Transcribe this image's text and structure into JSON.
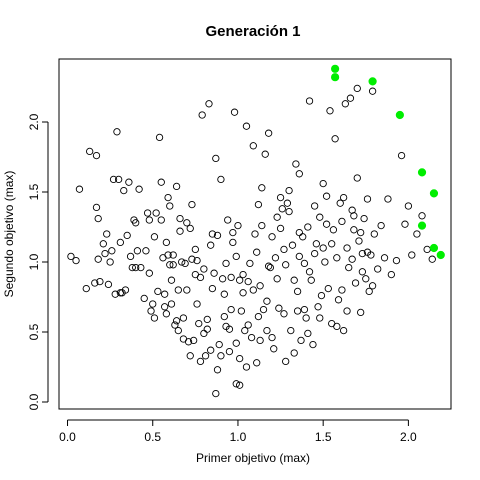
{
  "chart_data": {
    "type": "scatter",
    "title": "Generación 1",
    "xlabel": "Primer objetivo (max)",
    "ylabel": "Segundo objetivo (max)",
    "xlim": [
      -0.05,
      2.25
    ],
    "ylim": [
      -0.05,
      2.45
    ],
    "xticks": [
      0.0,
      0.5,
      1.0,
      1.5,
      2.0
    ],
    "xtick_labels": [
      "0.0",
      "0.5",
      "1.0",
      "1.5",
      "2.0"
    ],
    "yticks": [
      0.0,
      0.5,
      1.0,
      1.5,
      2.0
    ],
    "ytick_labels": [
      "0.0",
      "0.5",
      "1.0",
      "1.5",
      "2.0"
    ],
    "grid": false,
    "colors": {
      "population": "#000000",
      "pareto": "#00ee00"
    },
    "series": [
      {
        "marker": "open-circle",
        "points": [
          [
            0.02,
            1.04
          ],
          [
            0.05,
            1.01
          ],
          [
            0.07,
            1.52
          ],
          [
            0.11,
            0.81
          ],
          [
            0.13,
            1.79
          ],
          [
            0.17,
            1.76
          ],
          [
            0.17,
            1.39
          ],
          [
            0.18,
            1.31
          ],
          [
            0.16,
            0.85
          ],
          [
            0.19,
            0.86
          ],
          [
            0.21,
            1.13
          ],
          [
            0.22,
            1.06
          ],
          [
            0.24,
            0.84
          ],
          [
            0.25,
            1.0
          ],
          [
            0.27,
            1.59
          ],
          [
            0.28,
            0.77
          ],
          [
            0.29,
            1.93
          ],
          [
            0.3,
            1.59
          ],
          [
            0.31,
            0.78
          ],
          [
            0.32,
            0.78
          ],
          [
            0.33,
            1.51
          ],
          [
            0.34,
            0.8
          ],
          [
            0.36,
            1.57
          ],
          [
            0.37,
            1.04
          ],
          [
            0.38,
            0.96
          ],
          [
            0.39,
            1.3
          ],
          [
            0.4,
            1.28
          ],
          [
            0.41,
            1.08
          ],
          [
            0.43,
            0.96
          ],
          [
            0.45,
            0.74
          ],
          [
            0.47,
            1.35
          ],
          [
            0.48,
            1.3
          ],
          [
            0.49,
            0.65
          ],
          [
            0.5,
            0.7
          ],
          [
            0.51,
            0.6
          ],
          [
            0.51,
            1.18
          ],
          [
            0.53,
            0.79
          ],
          [
            0.54,
            1.89
          ],
          [
            0.55,
            1.57
          ],
          [
            0.56,
            1.03
          ],
          [
            0.57,
            0.77
          ],
          [
            0.58,
            0.63
          ],
          [
            0.59,
            1.46
          ],
          [
            0.6,
            1.4
          ],
          [
            0.6,
            0.98
          ],
          [
            0.61,
            0.87
          ],
          [
            0.62,
            1.05
          ],
          [
            0.63,
            0.55
          ],
          [
            0.64,
            1.54
          ],
          [
            0.65,
            0.8
          ],
          [
            0.65,
            0.51
          ],
          [
            0.66,
            1.31
          ],
          [
            0.67,
            1.0
          ],
          [
            0.68,
            0.45
          ],
          [
            0.69,
            0.99
          ],
          [
            0.7,
            1.28
          ],
          [
            0.71,
            0.43
          ],
          [
            0.72,
            1.24
          ],
          [
            0.73,
            1.02
          ],
          [
            0.74,
            0.44
          ],
          [
            0.75,
            0.91
          ],
          [
            0.76,
            0.7
          ],
          [
            0.77,
            0.56
          ],
          [
            0.78,
            0.89
          ],
          [
            0.79,
            2.05
          ],
          [
            0.8,
            0.95
          ],
          [
            0.81,
            0.33
          ],
          [
            0.82,
            0.59
          ],
          [
            0.83,
            2.13
          ],
          [
            0.84,
            1.12
          ],
          [
            0.85,
            0.81
          ],
          [
            0.86,
            0.92
          ],
          [
            0.87,
            1.74
          ],
          [
            0.88,
            1.19
          ],
          [
            0.89,
            0.41
          ],
          [
            0.9,
            0.33
          ],
          [
            0.91,
            0.88
          ],
          [
            0.92,
            0.77
          ],
          [
            0.93,
            0.54
          ],
          [
            0.94,
            1.3
          ],
          [
            0.95,
            0.52
          ],
          [
            0.96,
            0.89
          ],
          [
            0.97,
            1.21
          ],
          [
            0.98,
            2.07
          ],
          [
            0.99,
            0.42
          ],
          [
            1.0,
            1.26
          ],
          [
            1.01,
            0.12
          ],
          [
            1.02,
            0.65
          ],
          [
            1.03,
            0.78
          ],
          [
            1.04,
            0.51
          ],
          [
            1.05,
            1.97
          ],
          [
            1.06,
            0.86
          ],
          [
            1.07,
            0.99
          ],
          [
            1.08,
            0.46
          ],
          [
            1.09,
            1.83
          ],
          [
            1.1,
            1.2
          ],
          [
            1.11,
            0.28
          ],
          [
            1.12,
            0.61
          ],
          [
            1.13,
            0.83
          ],
          [
            1.14,
            1.26
          ],
          [
            1.15,
            0.66
          ],
          [
            1.16,
            1.77
          ],
          [
            1.17,
            0.51
          ],
          [
            1.18,
            1.92
          ],
          [
            1.19,
            0.96
          ],
          [
            1.2,
            1.18
          ],
          [
            1.21,
            0.38
          ],
          [
            1.22,
            1.03
          ],
          [
            1.23,
            1.32
          ],
          [
            1.24,
            0.67
          ],
          [
            1.25,
            1.24
          ],
          [
            1.26,
            1.38
          ],
          [
            1.27,
            0.63
          ],
          [
            1.28,
            0.98
          ],
          [
            1.29,
            1.42
          ],
          [
            1.3,
            1.51
          ],
          [
            1.31,
            0.51
          ],
          [
            1.32,
            1.12
          ],
          [
            1.33,
            0.87
          ],
          [
            1.34,
            1.7
          ],
          [
            1.35,
            0.65
          ],
          [
            1.36,
            1.04
          ],
          [
            1.37,
            0.44
          ],
          [
            1.38,
            1.18
          ],
          [
            1.39,
            0.99
          ],
          [
            1.4,
            0.6
          ],
          [
            1.41,
            1.25
          ],
          [
            1.42,
            2.15
          ],
          [
            1.43,
            0.87
          ],
          [
            1.44,
            0.41
          ],
          [
            1.45,
            1.06
          ],
          [
            1.46,
            1.13
          ],
          [
            1.47,
            0.68
          ],
          [
            1.48,
            1.32
          ],
          [
            1.49,
            0.76
          ],
          [
            1.5,
            1.56
          ],
          [
            1.51,
            1.0
          ],
          [
            1.52,
            1.47
          ],
          [
            1.53,
            0.81
          ],
          [
            1.54,
            2.08
          ],
          [
            1.55,
            0.56
          ],
          [
            1.56,
            1.23
          ],
          [
            1.57,
            1.88
          ],
          [
            1.58,
            1.03
          ],
          [
            1.59,
            0.73
          ],
          [
            1.6,
            1.42
          ],
          [
            1.61,
            1.29
          ],
          [
            1.62,
            0.51
          ],
          [
            1.63,
            2.13
          ],
          [
            1.64,
            1.1
          ],
          [
            1.65,
            0.96
          ],
          [
            1.66,
            2.17
          ],
          [
            1.67,
            1.37
          ],
          [
            1.68,
            1.23
          ],
          [
            1.69,
            0.85
          ],
          [
            1.7,
            2.24
          ],
          [
            1.71,
            1.15
          ],
          [
            1.72,
            1.21
          ],
          [
            1.73,
            0.93
          ],
          [
            1.74,
            1.31
          ],
          [
            1.75,
            0.88
          ],
          [
            1.76,
            1.07
          ],
          [
            1.77,
            0.79
          ],
          [
            1.78,
            1.05
          ],
          [
            1.79,
            2.22
          ],
          [
            1.8,
            1.2
          ],
          [
            1.82,
            0.95
          ],
          [
            1.84,
            1.26
          ],
          [
            1.86,
            1.03
          ],
          [
            1.88,
            1.45
          ],
          [
            1.9,
            0.91
          ],
          [
            1.93,
            1.01
          ],
          [
            1.96,
            1.76
          ],
          [
            1.98,
            1.27
          ],
          [
            2.0,
            1.4
          ],
          [
            2.02,
            1.05
          ],
          [
            2.05,
            1.2
          ],
          [
            2.08,
            1.33
          ],
          [
            2.11,
            1.09
          ],
          [
            2.14,
            1.02
          ],
          [
            0.26,
            1.08
          ],
          [
            0.35,
            1.19
          ],
          [
            0.42,
            1.52
          ],
          [
            0.46,
            1.08
          ],
          [
            0.52,
            1.35
          ],
          [
            0.58,
            1.14
          ],
          [
            0.61,
            0.7
          ],
          [
            0.66,
            1.22
          ],
          [
            0.68,
            0.6
          ],
          [
            0.73,
            1.41
          ],
          [
            0.76,
            1.01
          ],
          [
            0.8,
            0.49
          ],
          [
            0.84,
            0.37
          ],
          [
            0.88,
            0.23
          ],
          [
            0.9,
            1.59
          ],
          [
            0.93,
            0.99
          ],
          [
            0.96,
            0.66
          ],
          [
            0.99,
            1.04
          ],
          [
            1.01,
            0.31
          ],
          [
            1.03,
            0.91
          ],
          [
            1.06,
            0.55
          ],
          [
            1.09,
            0.8
          ],
          [
            1.11,
            1.07
          ],
          [
            1.14,
            1.53
          ],
          [
            1.17,
            0.72
          ],
          [
            1.2,
            0.46
          ],
          [
            1.23,
            0.88
          ],
          [
            1.27,
            1.09
          ],
          [
            1.3,
            1.36
          ],
          [
            1.33,
            0.35
          ],
          [
            1.36,
            1.21
          ],
          [
            1.39,
            0.66
          ],
          [
            1.42,
            0.93
          ],
          [
            1.45,
            1.4
          ],
          [
            1.48,
            0.6
          ],
          [
            1.52,
            1.27
          ],
          [
            1.55,
            1.13
          ],
          [
            1.58,
            0.54
          ],
          [
            1.61,
            0.8
          ],
          [
            1.64,
            0.65
          ],
          [
            1.67,
            1.02
          ],
          [
            1.7,
            1.6
          ],
          [
            1.73,
            1.06
          ],
          [
            1.76,
            1.45
          ],
          [
            1.79,
            0.83
          ],
          [
            1.36,
            1.63
          ],
          [
            1.25,
            1.46
          ],
          [
            1.12,
            1.41
          ],
          [
            0.97,
            1.14
          ],
          [
            0.85,
            1.2
          ],
          [
            0.78,
            0.29
          ],
          [
            0.7,
            0.8
          ],
          [
            0.62,
            0.98
          ],
          [
            0.55,
            1.3
          ],
          [
            0.48,
            0.92
          ],
          [
            0.4,
            0.96
          ],
          [
            0.31,
            1.14
          ],
          [
            0.23,
            1.2
          ],
          [
            0.18,
            1.02
          ],
          [
            0.99,
            0.13
          ],
          [
            0.87,
            0.06
          ],
          [
            1.05,
            0.25
          ],
          [
            1.13,
            0.44
          ],
          [
            0.95,
            0.36
          ],
          [
            0.82,
            0.52
          ],
          [
            0.72,
            0.33
          ],
          [
            0.64,
            0.58
          ],
          [
            0.57,
            0.68
          ],
          [
            1.28,
            0.29
          ],
          [
            1.41,
            0.49
          ],
          [
            1.5,
            1.1
          ],
          [
            1.62,
            1.46
          ],
          [
            1.68,
            1.33
          ],
          [
            1.72,
            0.64
          ],
          [
            1.35,
            0.79
          ],
          [
            1.18,
            0.97
          ],
          [
            1.01,
            0.87
          ],
          [
            0.92,
            0.61
          ],
          [
            0.75,
            1.09
          ],
          [
            0.59,
            1.05
          ]
        ]
      },
      {
        "marker": "filled-circle",
        "color": "#00ee00",
        "points": [
          [
            1.57,
            2.38
          ],
          [
            1.57,
            2.32
          ],
          [
            1.79,
            2.29
          ],
          [
            1.95,
            2.05
          ],
          [
            2.08,
            1.64
          ],
          [
            2.15,
            1.49
          ],
          [
            2.08,
            1.26
          ],
          [
            2.15,
            1.1
          ],
          [
            2.19,
            1.05
          ]
        ]
      }
    ]
  }
}
